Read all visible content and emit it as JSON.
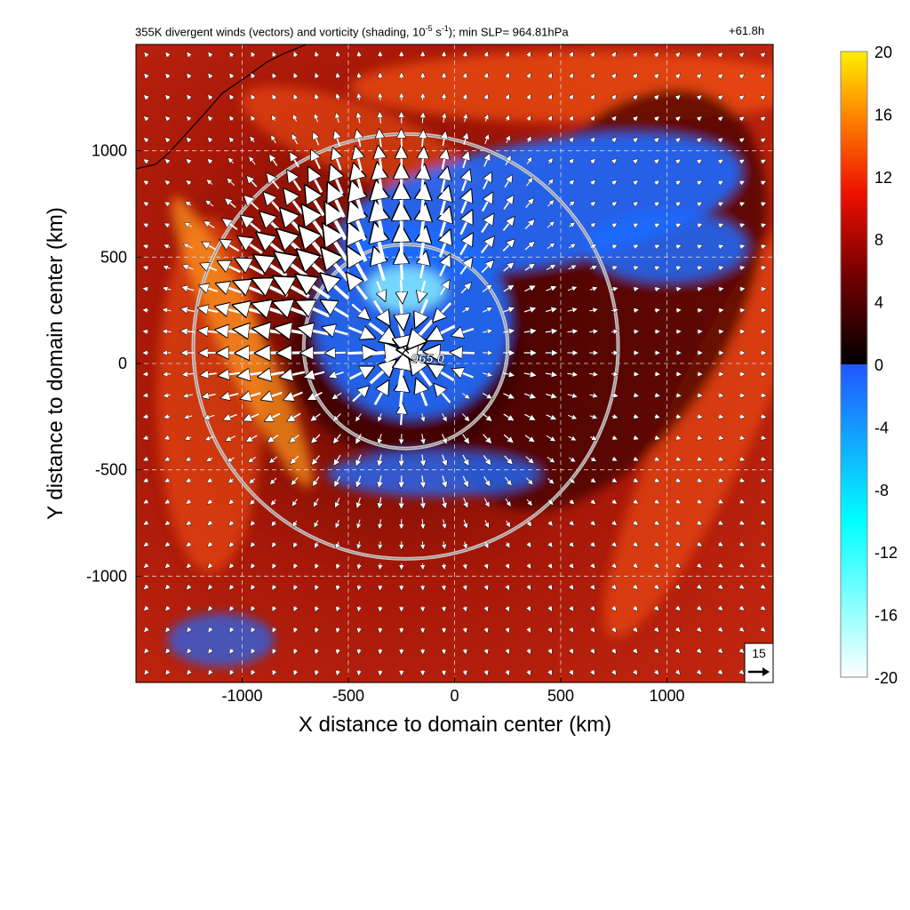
{
  "title": {
    "prefix": "355K divergent winds (vectors) and vorticity (shading, 10",
    "exponent": "-5",
    "unit_mid": " s",
    "unit_exp": "-1",
    "suffix": "); min SLP= 964.81hPa",
    "forecast_hour": "+61.8h"
  },
  "chart_data": {
    "type": "heatmap",
    "xlabel": "X distance to domain center (km)",
    "ylabel": "Y distance to domain center (km)",
    "xlim": [
      -1500,
      1500
    ],
    "ylim": [
      -1500,
      1500
    ],
    "x_ticks": [
      -1000,
      -500,
      0,
      500,
      1000
    ],
    "y_ticks": [
      -1000,
      -500,
      0,
      500,
      1000
    ],
    "x_tick_labels": [
      "-1000",
      "-500",
      "0",
      "500",
      "1000"
    ],
    "y_tick_labels": [
      "-1000",
      "-500",
      "0",
      "500",
      "1000"
    ],
    "grid": true,
    "storm_center": {
      "x": -230,
      "y": 60,
      "label": "965.0"
    },
    "circles": [
      {
        "center_x": -230,
        "center_y": 80,
        "radius_km": 480
      },
      {
        "center_x": -230,
        "center_y": 80,
        "radius_km": 1000
      }
    ],
    "reference_vector": {
      "label": "15",
      "value": 15
    },
    "colorbar": {
      "min": -20,
      "max": 20,
      "tick_values": [
        20,
        16,
        12,
        8,
        4,
        0,
        -4,
        -8,
        -12,
        -16,
        -20
      ],
      "tick_labels": [
        "20",
        "16",
        "12",
        "8",
        "4",
        "0",
        "-4",
        "-8",
        "-12",
        "-16",
        "-20"
      ],
      "colors": {
        "max": "#ffee00",
        "orange": "#ff8800",
        "red": "#ee1100",
        "dark_red": "#7a0000",
        "zero_pos": "#000000",
        "zero_neg": "#2255ff",
        "cyan": "#00ffff",
        "min": "#ffffff"
      }
    },
    "background_colors": {
      "field": "#b01a0a",
      "dark": "#3a0000",
      "bright": "#ff5a10",
      "negative": "#1f6bff",
      "negative_core": "#7fe3ff"
    }
  }
}
